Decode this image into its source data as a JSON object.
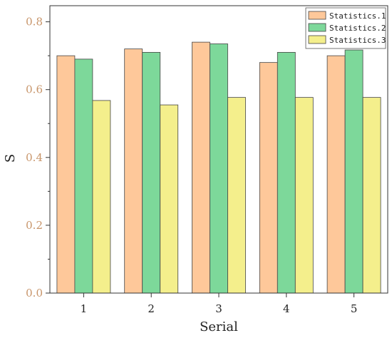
{
  "chart_data": {
    "type": "bar",
    "title": "",
    "xlabel": "Serial",
    "ylabel": "S",
    "categories": [
      "1",
      "2",
      "3",
      "4",
      "5"
    ],
    "ylim": [
      0,
      0.8
    ],
    "yticks": [
      "0.0",
      "0.2",
      "0.4",
      "0.6",
      "0.8"
    ],
    "series": [
      {
        "name": "Statistics.1",
        "color": "#fec89a",
        "values": [
          0.7,
          0.72,
          0.74,
          0.68,
          0.7
        ]
      },
      {
        "name": "Statistics.2",
        "color": "#7dd89a",
        "values": [
          0.69,
          0.71,
          0.735,
          0.71,
          0.717
        ]
      },
      {
        "name": "Statistics.3",
        "color": "#f4ef8c",
        "values": [
          0.568,
          0.555,
          0.577,
          0.577,
          0.577
        ]
      }
    ],
    "legend_position": "top-right",
    "grid": false
  }
}
